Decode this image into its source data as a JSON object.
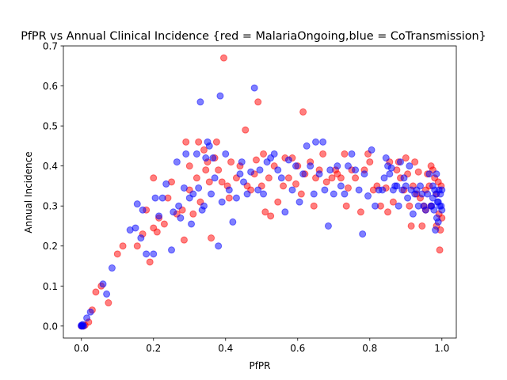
{
  "chart_data": {
    "type": "scatter",
    "title": "PfPR vs Annual Clinical Incidence {red = MalariaOngoing,blue = CoTransmission}",
    "xlabel": "PfPR",
    "ylabel": "Annual Incidence",
    "xlim": [
      -0.05,
      1.04
    ],
    "ylim": [
      -0.03,
      0.7
    ],
    "xticks": [
      0.0,
      0.2,
      0.4,
      0.6,
      0.8,
      1.0
    ],
    "xtick_labels": [
      "0.0",
      "0.2",
      "0.4",
      "0.6",
      "0.8",
      "1.0"
    ],
    "yticks": [
      0.0,
      0.1,
      0.2,
      0.3,
      0.4,
      0.5,
      0.6,
      0.7
    ],
    "ytick_labels": [
      "0.0",
      "0.1",
      "0.2",
      "0.3",
      "0.4",
      "0.5",
      "0.6",
      "0.7"
    ],
    "grid": false,
    "legend": "none",
    "marker_alpha": 0.5,
    "series": [
      {
        "color": "#ff0000",
        "points": [
          [
            0.0,
            0.0
          ],
          [
            0.005,
            0.0
          ],
          [
            0.01,
            0.002
          ],
          [
            0.02,
            0.01
          ],
          [
            0.03,
            0.04
          ],
          [
            0.04,
            0.085
          ],
          [
            0.055,
            0.1
          ],
          [
            0.075,
            0.058
          ],
          [
            0.1,
            0.18
          ],
          [
            0.115,
            0.2
          ],
          [
            0.155,
            0.2
          ],
          [
            0.17,
            0.23
          ],
          [
            0.18,
            0.29
          ],
          [
            0.19,
            0.16
          ],
          [
            0.2,
            0.245
          ],
          [
            0.2,
            0.37
          ],
          [
            0.21,
            0.235
          ],
          [
            0.215,
            0.27
          ],
          [
            0.23,
            0.255
          ],
          [
            0.24,
            0.32
          ],
          [
            0.25,
            0.36
          ],
          [
            0.265,
            0.28
          ],
          [
            0.28,
            0.29
          ],
          [
            0.285,
            0.215
          ],
          [
            0.29,
            0.46
          ],
          [
            0.3,
            0.34
          ],
          [
            0.3,
            0.4
          ],
          [
            0.31,
            0.28
          ],
          [
            0.32,
            0.37
          ],
          [
            0.325,
            0.46
          ],
          [
            0.33,
            0.31
          ],
          [
            0.34,
            0.44
          ],
          [
            0.345,
            0.39
          ],
          [
            0.35,
            0.41
          ],
          [
            0.355,
            0.36
          ],
          [
            0.36,
            0.22
          ],
          [
            0.37,
            0.42
          ],
          [
            0.375,
            0.46
          ],
          [
            0.38,
            0.39
          ],
          [
            0.39,
            0.36
          ],
          [
            0.395,
            0.67
          ],
          [
            0.405,
            0.35
          ],
          [
            0.41,
            0.32
          ],
          [
            0.415,
            0.41
          ],
          [
            0.43,
            0.37
          ],
          [
            0.44,
            0.4
          ],
          [
            0.455,
            0.49
          ],
          [
            0.46,
            0.35
          ],
          [
            0.47,
            0.34
          ],
          [
            0.48,
            0.38
          ],
          [
            0.485,
            0.415
          ],
          [
            0.49,
            0.56
          ],
          [
            0.5,
            0.35
          ],
          [
            0.505,
            0.43
          ],
          [
            0.51,
            0.285
          ],
          [
            0.52,
            0.37
          ],
          [
            0.525,
            0.275
          ],
          [
            0.535,
            0.4
          ],
          [
            0.545,
            0.31
          ],
          [
            0.56,
            0.35
          ],
          [
            0.565,
            0.42
          ],
          [
            0.575,
            0.37
          ],
          [
            0.585,
            0.42
          ],
          [
            0.595,
            0.355
          ],
          [
            0.6,
            0.4
          ],
          [
            0.61,
            0.33
          ],
          [
            0.615,
            0.535
          ],
          [
            0.62,
            0.38
          ],
          [
            0.635,
            0.41
          ],
          [
            0.645,
            0.3
          ],
          [
            0.65,
            0.37
          ],
          [
            0.66,
            0.39
          ],
          [
            0.67,
            0.43
          ],
          [
            0.68,
            0.36
          ],
          [
            0.695,
            0.37
          ],
          [
            0.705,
            0.39
          ],
          [
            0.71,
            0.38
          ],
          [
            0.72,
            0.37
          ],
          [
            0.73,
            0.43
          ],
          [
            0.735,
            0.3
          ],
          [
            0.74,
            0.345
          ],
          [
            0.75,
            0.39
          ],
          [
            0.76,
            0.37
          ],
          [
            0.775,
            0.285
          ],
          [
            0.785,
            0.39
          ],
          [
            0.795,
            0.43
          ],
          [
            0.8,
            0.41
          ],
          [
            0.81,
            0.34
          ],
          [
            0.82,
            0.35
          ],
          [
            0.83,
            0.3
          ],
          [
            0.845,
            0.345
          ],
          [
            0.85,
            0.285
          ],
          [
            0.855,
            0.41
          ],
          [
            0.865,
            0.31
          ],
          [
            0.875,
            0.39
          ],
          [
            0.88,
            0.41
          ],
          [
            0.885,
            0.37
          ],
          [
            0.895,
            0.34
          ],
          [
            0.9,
            0.42
          ],
          [
            0.905,
            0.38
          ],
          [
            0.91,
            0.3
          ],
          [
            0.915,
            0.25
          ],
          [
            0.92,
            0.35
          ],
          [
            0.925,
            0.41
          ],
          [
            0.93,
            0.33
          ],
          [
            0.935,
            0.385
          ],
          [
            0.94,
            0.32
          ],
          [
            0.945,
            0.25
          ],
          [
            0.95,
            0.3
          ],
          [
            0.955,
            0.34
          ],
          [
            0.96,
            0.38
          ],
          [
            0.965,
            0.35
          ],
          [
            0.97,
            0.4
          ],
          [
            0.975,
            0.39
          ],
          [
            0.98,
            0.37
          ],
          [
            0.985,
            0.33
          ],
          [
            0.99,
            0.36
          ],
          [
            0.992,
            0.28
          ],
          [
            0.994,
            0.19
          ],
          [
            0.996,
            0.24
          ],
          [
            0.998,
            0.35
          ],
          [
            1.0,
            0.27
          ],
          [
            0.97,
            0.3
          ],
          [
            0.985,
            0.25
          ],
          [
            0.955,
            0.29
          ]
        ]
      },
      {
        "color": "#0000ff",
        "points": [
          [
            0.0,
            0.0
          ],
          [
            0.0,
            0.002
          ],
          [
            0.002,
            0.0
          ],
          [
            0.004,
            0.004
          ],
          [
            0.006,
            0.0
          ],
          [
            0.015,
            0.02
          ],
          [
            0.025,
            0.035
          ],
          [
            0.06,
            0.105
          ],
          [
            0.07,
            0.08
          ],
          [
            0.085,
            0.145
          ],
          [
            0.135,
            0.24
          ],
          [
            0.15,
            0.245
          ],
          [
            0.155,
            0.305
          ],
          [
            0.165,
            0.22
          ],
          [
            0.17,
            0.29
          ],
          [
            0.18,
            0.18
          ],
          [
            0.2,
            0.18
          ],
          [
            0.205,
            0.32
          ],
          [
            0.215,
            0.275
          ],
          [
            0.225,
            0.32
          ],
          [
            0.235,
            0.355
          ],
          [
            0.25,
            0.19
          ],
          [
            0.255,
            0.285
          ],
          [
            0.265,
            0.41
          ],
          [
            0.27,
            0.3
          ],
          [
            0.275,
            0.27
          ],
          [
            0.285,
            0.345
          ],
          [
            0.29,
            0.43
          ],
          [
            0.3,
            0.32
          ],
          [
            0.305,
            0.255
          ],
          [
            0.31,
            0.33
          ],
          [
            0.32,
            0.43
          ],
          [
            0.325,
            0.345
          ],
          [
            0.33,
            0.56
          ],
          [
            0.335,
            0.29
          ],
          [
            0.34,
            0.3
          ],
          [
            0.345,
            0.42
          ],
          [
            0.35,
            0.46
          ],
          [
            0.355,
            0.45
          ],
          [
            0.36,
            0.33
          ],
          [
            0.365,
            0.42
          ],
          [
            0.37,
            0.37
          ],
          [
            0.38,
            0.2
          ],
          [
            0.385,
            0.575
          ],
          [
            0.39,
            0.31
          ],
          [
            0.4,
            0.43
          ],
          [
            0.41,
            0.34
          ],
          [
            0.42,
            0.26
          ],
          [
            0.43,
            0.32
          ],
          [
            0.44,
            0.38
          ],
          [
            0.445,
            0.41
          ],
          [
            0.45,
            0.36
          ],
          [
            0.46,
            0.33
          ],
          [
            0.47,
            0.385
          ],
          [
            0.48,
            0.595
          ],
          [
            0.49,
            0.34
          ],
          [
            0.495,
            0.39
          ],
          [
            0.505,
            0.33
          ],
          [
            0.515,
            0.41
          ],
          [
            0.525,
            0.42
          ],
          [
            0.535,
            0.43
          ],
          [
            0.545,
            0.39
          ],
          [
            0.555,
            0.37
          ],
          [
            0.565,
            0.285
          ],
          [
            0.575,
            0.415
          ],
          [
            0.585,
            0.34
          ],
          [
            0.595,
            0.4
          ],
          [
            0.605,
            0.31
          ],
          [
            0.615,
            0.38
          ],
          [
            0.625,
            0.45
          ],
          [
            0.635,
            0.4
          ],
          [
            0.645,
            0.33
          ],
          [
            0.65,
            0.46
          ],
          [
            0.66,
            0.38
          ],
          [
            0.67,
            0.46
          ],
          [
            0.675,
            0.34
          ],
          [
            0.685,
            0.25
          ],
          [
            0.69,
            0.39
          ],
          [
            0.7,
            0.33
          ],
          [
            0.71,
            0.4
          ],
          [
            0.72,
            0.35
          ],
          [
            0.73,
            0.33
          ],
          [
            0.74,
            0.4
          ],
          [
            0.75,
            0.43
          ],
          [
            0.76,
            0.39
          ],
          [
            0.77,
            0.34
          ],
          [
            0.78,
            0.23
          ],
          [
            0.785,
            0.38
          ],
          [
            0.795,
            0.325
          ],
          [
            0.805,
            0.44
          ],
          [
            0.815,
            0.3
          ],
          [
            0.825,
            0.34
          ],
          [
            0.835,
            0.34
          ],
          [
            0.84,
            0.37
          ],
          [
            0.845,
            0.42
          ],
          [
            0.85,
            0.4
          ],
          [
            0.855,
            0.38
          ],
          [
            0.86,
            0.395
          ],
          [
            0.865,
            0.34
          ],
          [
            0.87,
            0.35
          ],
          [
            0.875,
            0.35
          ],
          [
            0.88,
            0.3
          ],
          [
            0.885,
            0.41
          ],
          [
            0.89,
            0.34
          ],
          [
            0.895,
            0.37
          ],
          [
            0.9,
            0.35
          ],
          [
            0.905,
            0.32
          ],
          [
            0.91,
            0.4
          ],
          [
            0.915,
            0.34
          ],
          [
            0.92,
            0.28
          ],
          [
            0.925,
            0.33
          ],
          [
            0.93,
            0.34
          ],
          [
            0.935,
            0.3
          ],
          [
            0.94,
            0.35
          ],
          [
            0.945,
            0.33
          ],
          [
            0.95,
            0.3
          ],
          [
            0.955,
            0.29
          ],
          [
            0.96,
            0.33
          ],
          [
            0.965,
            0.38
          ],
          [
            0.97,
            0.3
          ],
          [
            0.972,
            0.3
          ],
          [
            0.975,
            0.32
          ],
          [
            0.978,
            0.29
          ],
          [
            0.98,
            0.34
          ],
          [
            0.982,
            0.24
          ],
          [
            0.984,
            0.33
          ],
          [
            0.986,
            0.27
          ],
          [
            0.988,
            0.31
          ],
          [
            0.99,
            0.26
          ],
          [
            0.992,
            0.34
          ],
          [
            0.994,
            0.3
          ],
          [
            0.996,
            0.33
          ],
          [
            0.998,
            0.3
          ],
          [
            1.0,
            0.34
          ],
          [
            1.0,
            0.29
          ],
          [
            0.985,
            0.38
          ],
          [
            0.975,
            0.35
          ],
          [
            0.99,
            0.31
          ]
        ]
      }
    ]
  }
}
